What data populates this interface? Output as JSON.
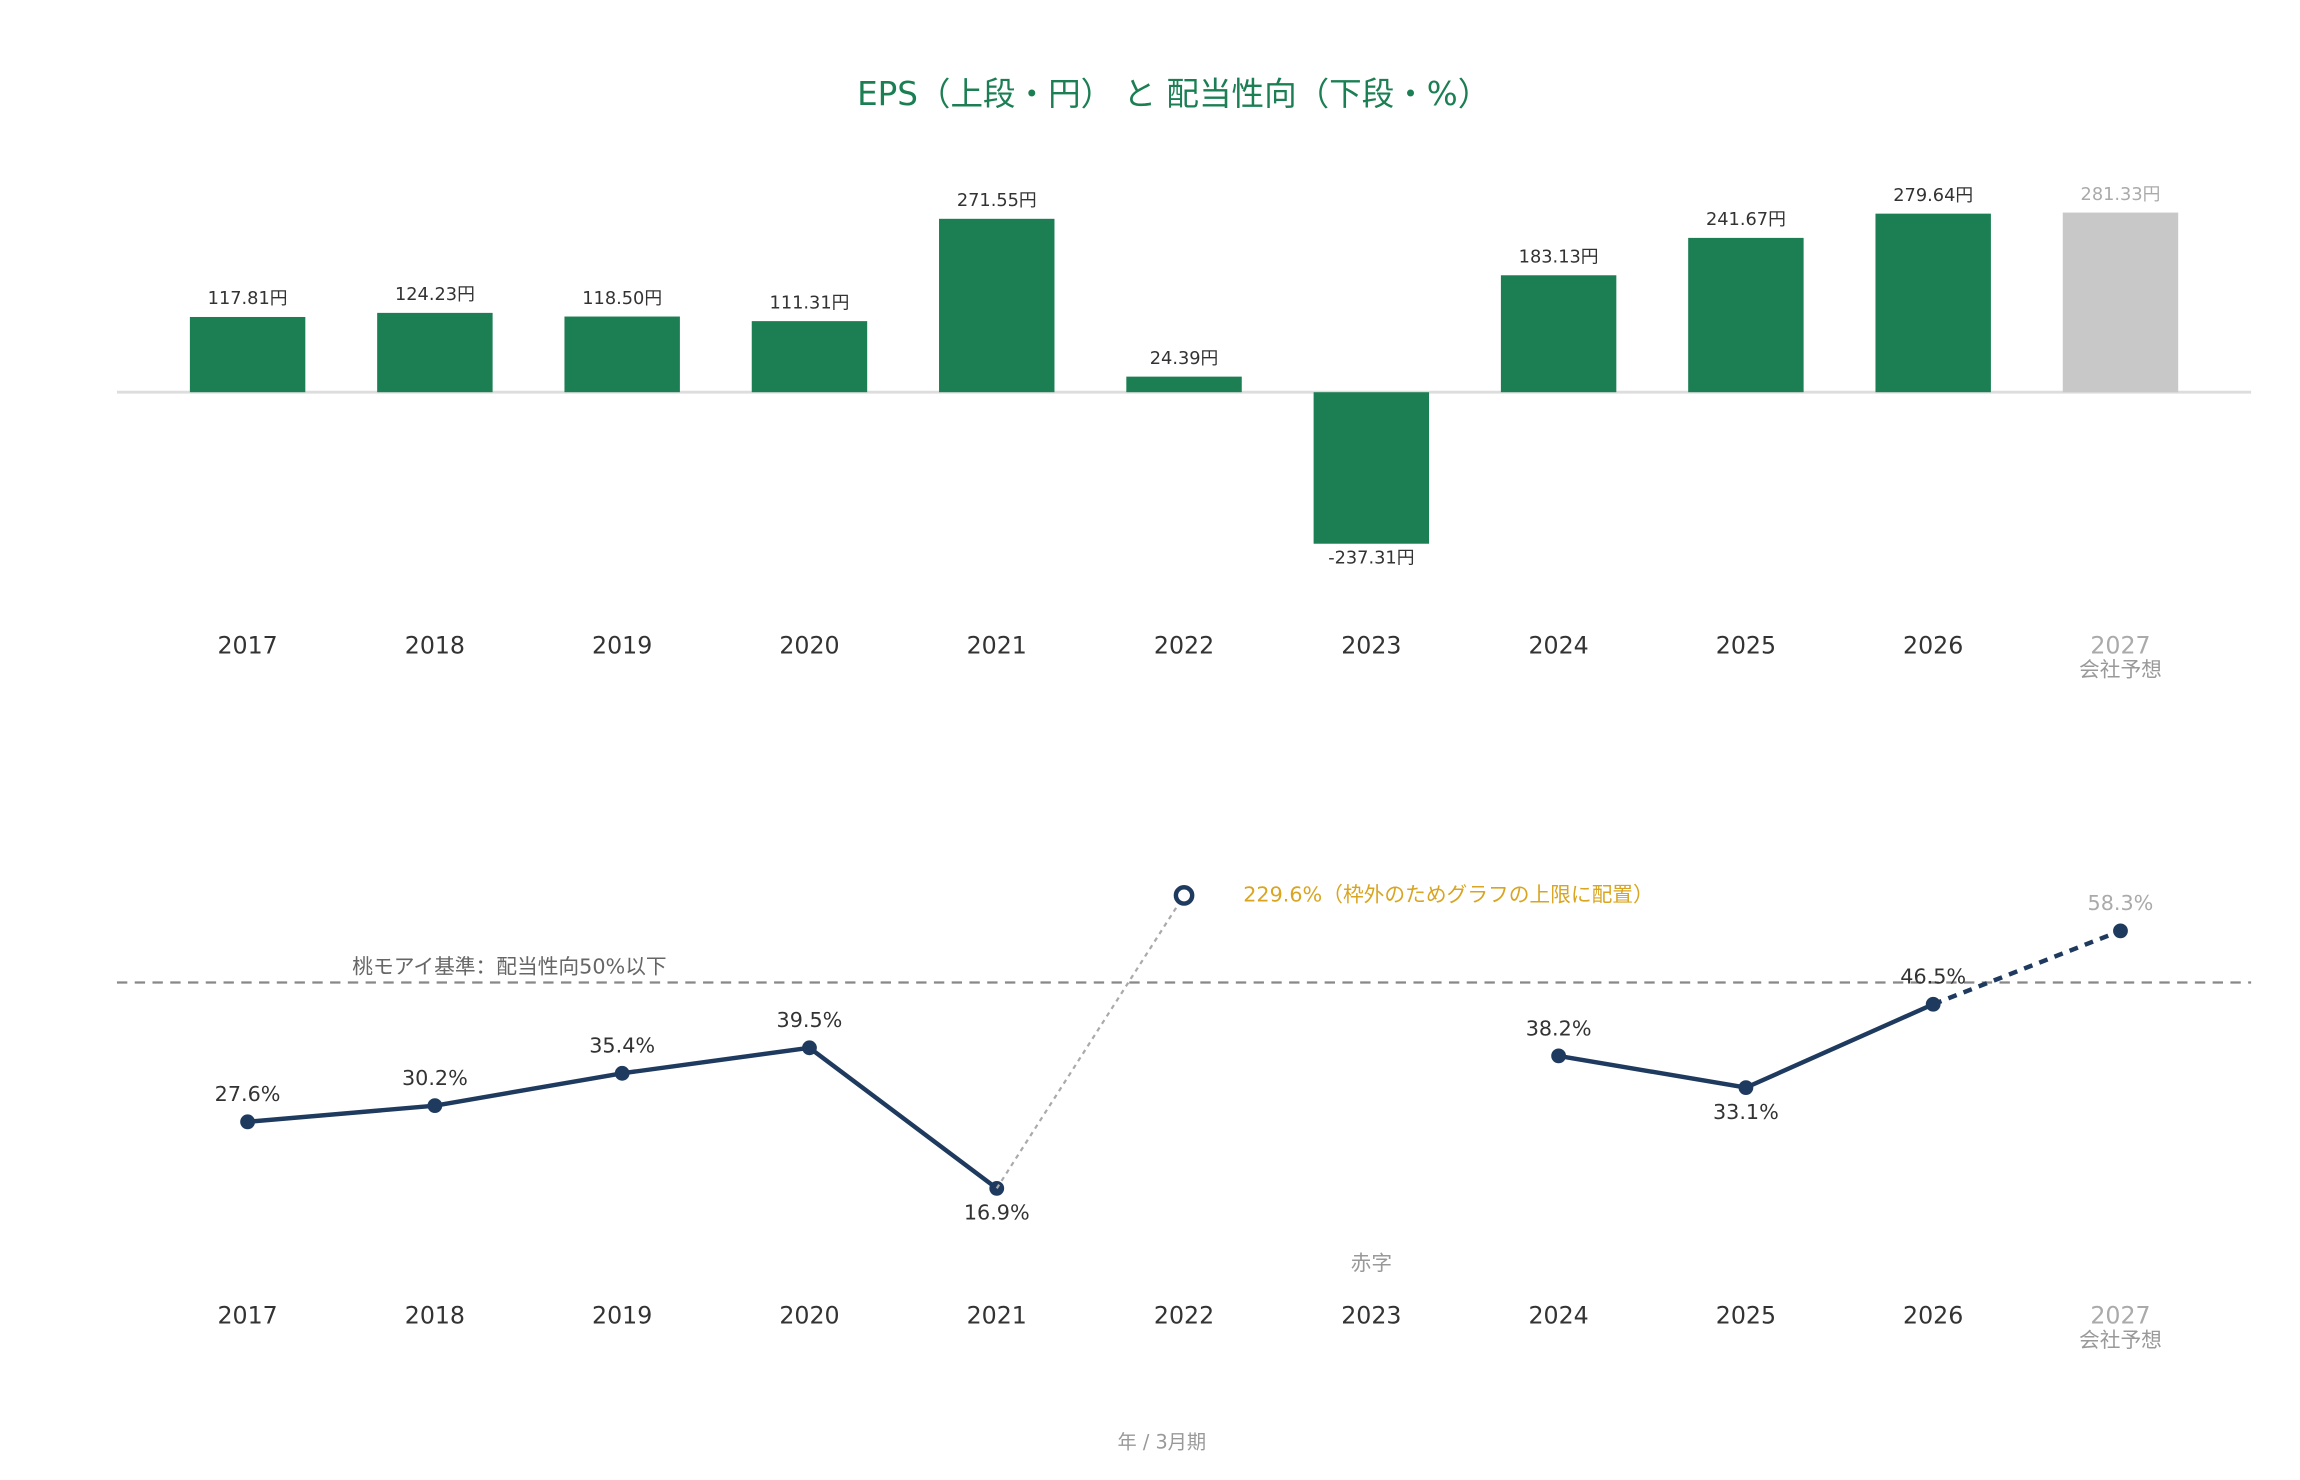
{
  "chart_data": [
    {
      "type": "bar",
      "title": "EPS（上段・円） と 配当性向（下段・%）",
      "categories": [
        "2017",
        "2018",
        "2019",
        "2020",
        "2021",
        "2022",
        "2023",
        "2024",
        "2025",
        "2026",
        "2027"
      ],
      "category_sublabels": [
        null,
        null,
        null,
        null,
        null,
        null,
        null,
        null,
        null,
        null,
        "会社予想"
      ],
      "values": [
        117.81,
        124.23,
        118.5,
        111.31,
        271.55,
        24.39,
        -237.31,
        183.13,
        241.67,
        279.64,
        281.33
      ],
      "value_labels": [
        "117.81円",
        "124.23円",
        "118.50円",
        "111.31円",
        "271.55円",
        "24.39円",
        "-237.31円",
        "183.13円",
        "241.67円",
        "279.64円",
        "281.33円"
      ],
      "colors": [
        "#1b7f53",
        "#1b7f53",
        "#1b7f53",
        "#1b7f53",
        "#1b7f53",
        "#1b7f53",
        "#1b7f53",
        "#1b7f53",
        "#1b7f53",
        "#1b7f53",
        "#c8c8c8"
      ],
      "ylim": [
        -350,
        350
      ]
    },
    {
      "type": "line",
      "xlabel": "年 / 3月期",
      "categories": [
        "2017",
        "2018",
        "2019",
        "2020",
        "2021",
        "2022",
        "2023",
        "2024",
        "2025",
        "2026",
        "2027"
      ],
      "category_sublabels": [
        null,
        null,
        null,
        null,
        null,
        null,
        null,
        null,
        null,
        null,
        "会社予想"
      ],
      "values": [
        27.6,
        30.2,
        35.4,
        39.5,
        16.9,
        null,
        null,
        38.2,
        33.1,
        46.5,
        58.3
      ],
      "value_labels": [
        "27.6%",
        "30.2%",
        "35.4%",
        "39.5%",
        "16.9%",
        null,
        null,
        "38.2%",
        "33.1%",
        "46.5%",
        "58.3%"
      ],
      "color": "#1f3a5f",
      "ylim": [
        0,
        64
      ],
      "reference": {
        "value": 50,
        "label": "桃モアイ基準：配当性向50%以下"
      },
      "annotations": [
        {
          "x": "2022",
          "text": "229.6%（枠外のためグラフの上限に配置）",
          "color": "#d9a521"
        },
        {
          "x": "2023",
          "text": "赤字",
          "color": "#999999"
        }
      ]
    }
  ]
}
